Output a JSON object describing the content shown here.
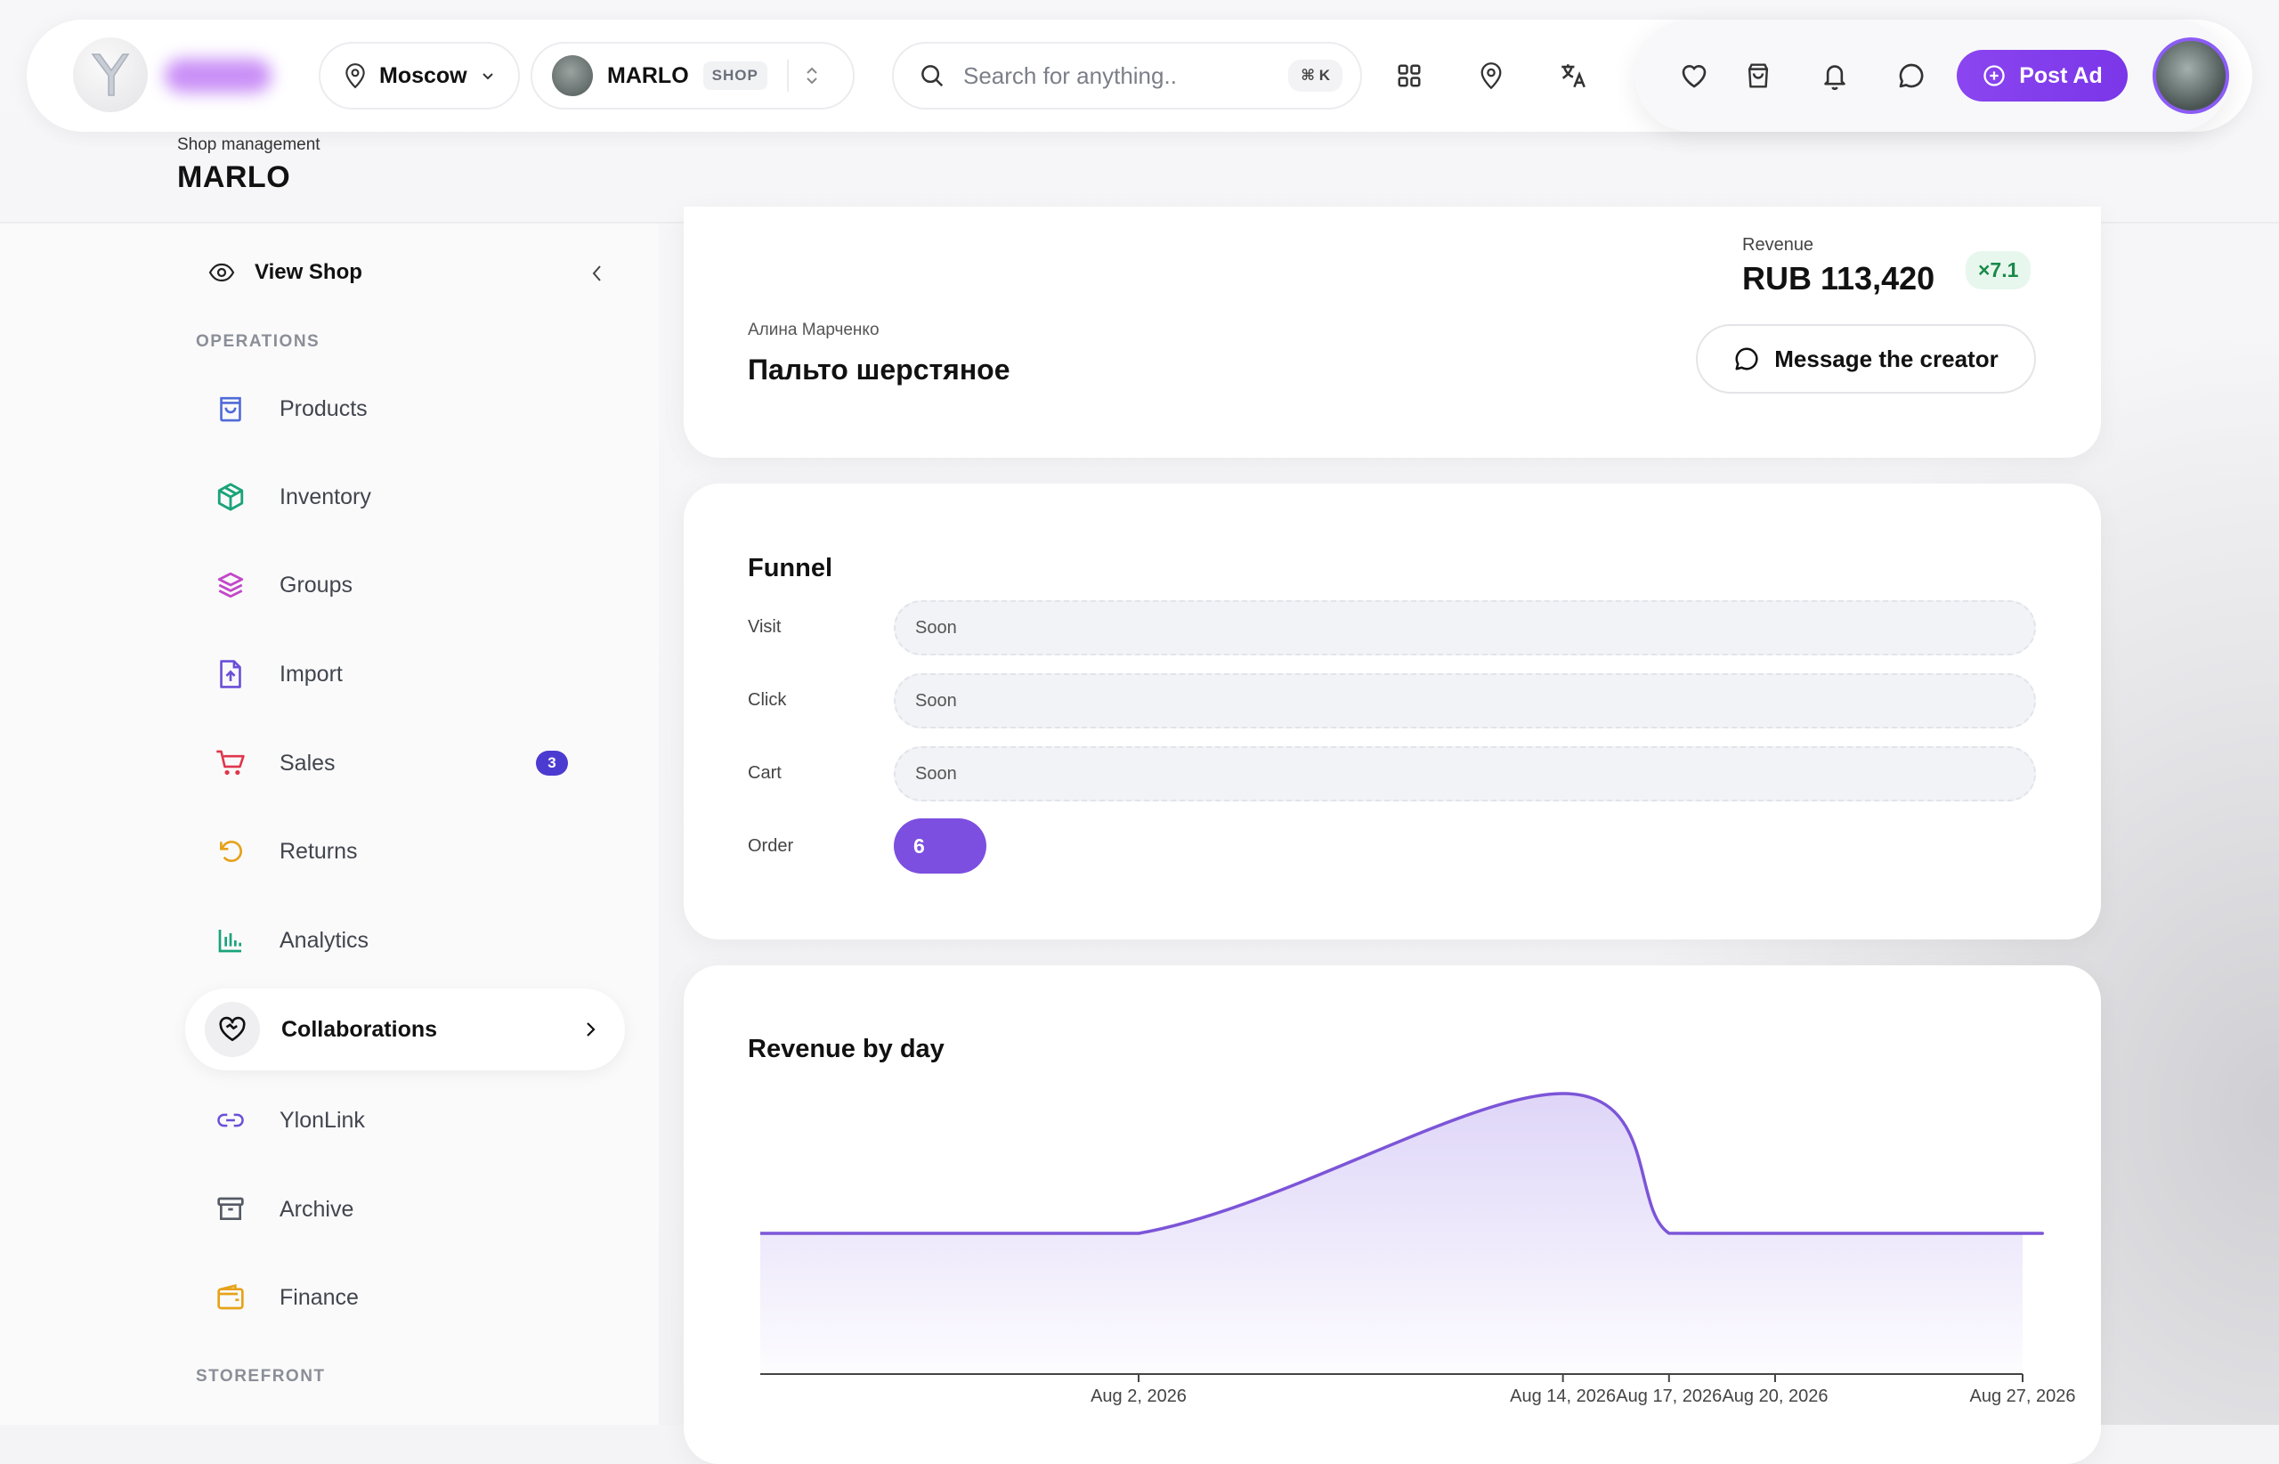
{
  "header": {
    "location": "Moscow",
    "shop": {
      "name": "MARLO",
      "tag": "SHOP"
    },
    "search": {
      "placeholder": "Search for anything..",
      "shortcut": "⌘ K"
    },
    "post_ad_label": "Post Ad"
  },
  "page": {
    "subtitle": "Shop management",
    "title": "MARLO"
  },
  "sidebar": {
    "view_shop": "View Shop",
    "section_operations": "OPERATIONS",
    "section_storefront": "STOREFRONT",
    "items": [
      {
        "label": "Products",
        "icon": "bag-icon",
        "color": "#4f6bd8"
      },
      {
        "label": "Inventory",
        "icon": "box-icon",
        "color": "#1aa37a"
      },
      {
        "label": "Groups",
        "icon": "layers-icon",
        "color": "#c248c9"
      },
      {
        "label": "Import",
        "icon": "file-upload-icon",
        "color": "#6b4fd8"
      },
      {
        "label": "Sales",
        "icon": "cart-icon",
        "color": "#e0364c",
        "badge": "3"
      },
      {
        "label": "Returns",
        "icon": "undo-icon",
        "color": "#e6a21a"
      },
      {
        "label": "Analytics",
        "icon": "bar-chart-icon",
        "color": "#1aa37a"
      },
      {
        "label": "Collaborations",
        "icon": "handshake-heart-icon",
        "active": true
      },
      {
        "label": "YlonLink",
        "icon": "link-icon",
        "color": "#6b4fd8"
      },
      {
        "label": "Archive",
        "icon": "archive-icon",
        "color": "#555a66"
      },
      {
        "label": "Finance",
        "icon": "wallet-icon",
        "color": "#e6a21a"
      }
    ]
  },
  "summary": {
    "revenue_label": "Revenue",
    "revenue_value": "RUB 113,420",
    "multiplier": "×7.1",
    "creator_name": "Алина Марченко",
    "product_title": "Пальто шерстяное",
    "message_button": "Message the creator"
  },
  "funnel": {
    "title": "Funnel",
    "rows": [
      {
        "label": "Visit",
        "value": "Soon"
      },
      {
        "label": "Click",
        "value": "Soon"
      },
      {
        "label": "Cart",
        "value": "Soon"
      },
      {
        "label": "Order",
        "value": "6"
      }
    ]
  },
  "colors": {
    "accent": "#7c3aed",
    "chart_line": "#7c55d8"
  },
  "chart_data": {
    "type": "area",
    "title": "Revenue by day",
    "x": [
      "Aug 2, 2026",
      "Aug 14, 2026",
      "Aug 17, 2026",
      "Aug 20, 2026",
      "Aug 27, 2026"
    ],
    "tick_labels": [
      "Aug 2, 2026",
      "Aug 14, 2026",
      "Aug 17, 2026",
      "Aug 20, 2026",
      "Aug 27, 2026"
    ],
    "series": [
      {
        "values": [
          0,
          100,
          0.08,
          0.01,
          0
        ]
      }
    ],
    "grid": false
  }
}
